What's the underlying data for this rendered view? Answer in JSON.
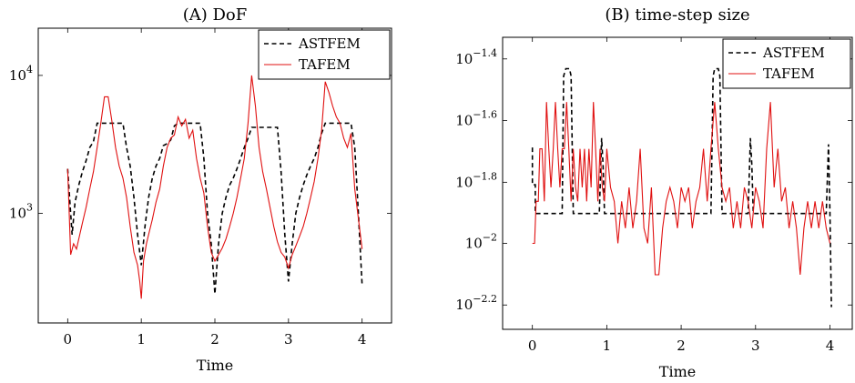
{
  "chart_data": [
    {
      "type": "line",
      "title": "(A) DoF",
      "xlabel": "Time",
      "ylabel": "",
      "yscale": "log",
      "xlim": [
        -0.4,
        4.4
      ],
      "ylim": [
        160,
        22000
      ],
      "xticks": [
        0,
        1,
        2,
        3,
        4
      ],
      "xtick_labels": [
        "0",
        "1",
        "2",
        "3",
        "4"
      ],
      "yticks": [
        1000,
        10000
      ],
      "ytick_labels": [
        "10^3",
        "10^4"
      ],
      "grid": false,
      "legend_position": "top-right",
      "series": [
        {
          "name": "ASTFEM",
          "style": "dashed",
          "color": "#000000",
          "x": [
            0.0,
            0.06,
            0.1,
            0.15,
            0.2,
            0.25,
            0.3,
            0.35,
            0.4,
            0.45,
            0.5,
            0.55,
            0.6,
            0.65,
            0.7,
            0.75,
            0.8,
            0.85,
            0.9,
            0.95,
            1.0,
            1.05,
            1.1,
            1.15,
            1.2,
            1.25,
            1.3,
            1.35,
            1.4,
            1.45,
            1.5,
            1.55,
            1.6,
            1.7,
            1.8,
            1.85,
            1.9,
            1.95,
            2.0,
            2.05,
            2.1,
            2.15,
            2.2,
            2.25,
            2.3,
            2.35,
            2.4,
            2.45,
            2.5,
            2.6,
            2.7,
            2.8,
            2.85,
            2.9,
            2.95,
            3.0,
            3.05,
            3.1,
            3.15,
            3.2,
            3.25,
            3.3,
            3.35,
            3.4,
            3.45,
            3.5,
            3.6,
            3.7,
            3.8,
            3.85,
            3.9,
            3.95,
            4.0
          ],
          "values": [
            2100,
            700,
            1200,
            1600,
            2000,
            2400,
            3000,
            3300,
            4500,
            4500,
            4500,
            4500,
            4500,
            4500,
            4500,
            4500,
            3000,
            2200,
            1300,
            700,
            420,
            800,
            1300,
            1800,
            2200,
            2500,
            3100,
            3200,
            3400,
            4300,
            4500,
            4500,
            4500,
            4500,
            4500,
            2500,
            1000,
            600,
            260,
            600,
            1000,
            1300,
            1600,
            1800,
            2100,
            2500,
            3000,
            3500,
            4200,
            4200,
            4200,
            4200,
            4200,
            2000,
            700,
            320,
            600,
            1000,
            1300,
            1600,
            1900,
            2200,
            2500,
            3000,
            3800,
            4500,
            4500,
            4500,
            4500,
            4500,
            3000,
            1000,
            300
          ]
        },
        {
          "name": "TAFEM",
          "style": "solid",
          "color": "#e01010",
          "x": [
            0.0,
            0.04,
            0.08,
            0.12,
            0.15,
            0.2,
            0.25,
            0.3,
            0.35,
            0.4,
            0.45,
            0.5,
            0.55,
            0.6,
            0.65,
            0.7,
            0.75,
            0.8,
            0.85,
            0.9,
            0.95,
            0.98,
            1.0,
            1.03,
            1.07,
            1.1,
            1.15,
            1.2,
            1.25,
            1.3,
            1.35,
            1.4,
            1.45,
            1.5,
            1.55,
            1.6,
            1.65,
            1.7,
            1.75,
            1.8,
            1.85,
            1.9,
            1.95,
            2.0,
            2.05,
            2.1,
            2.15,
            2.2,
            2.25,
            2.3,
            2.35,
            2.4,
            2.45,
            2.5,
            2.55,
            2.6,
            2.65,
            2.7,
            2.75,
            2.8,
            2.85,
            2.9,
            2.95,
            3.0,
            3.05,
            3.1,
            3.15,
            3.2,
            3.25,
            3.3,
            3.35,
            3.4,
            3.45,
            3.5,
            3.55,
            3.6,
            3.65,
            3.7,
            3.75,
            3.8,
            3.85,
            3.9,
            4.0
          ],
          "values": [
            2100,
            500,
            600,
            550,
            650,
            850,
            1100,
            1500,
            2000,
            3000,
            4500,
            7000,
            7000,
            4700,
            3000,
            2200,
            1800,
            1300,
            800,
            520,
            420,
            320,
            240,
            450,
            600,
            700,
            900,
            1200,
            1500,
            2200,
            3000,
            3500,
            3700,
            5000,
            4300,
            4800,
            3500,
            4000,
            2500,
            1800,
            1400,
            800,
            520,
            450,
            500,
            560,
            650,
            800,
            1000,
            1300,
            1800,
            2500,
            4500,
            10000,
            6000,
            3000,
            2000,
            1500,
            1100,
            800,
            620,
            520,
            480,
            400,
            500,
            580,
            680,
            800,
            1000,
            1300,
            1700,
            2500,
            4000,
            9000,
            7500,
            6000,
            5000,
            4500,
            3500,
            3000,
            3800,
            1500,
            550
          ]
        }
      ]
    },
    {
      "type": "line",
      "title": "(B) time-step size",
      "xlabel": "Time",
      "ylabel": "",
      "yscale": "log",
      "xlim": [
        -0.4,
        4.3
      ],
      "ylim": [
        0.00525,
        0.0468
      ],
      "xticks": [
        0,
        1,
        2,
        3,
        4
      ],
      "xtick_labels": [
        "0",
        "1",
        "2",
        "3",
        "4"
      ],
      "yticks": [
        0.0063,
        0.01,
        0.0158,
        0.0251,
        0.0398
      ],
      "ytick_labels": [
        "10^-2.2",
        "10^-2",
        "10^-1.8",
        "10^-1.6",
        "10^-1.4"
      ],
      "grid": false,
      "legend_position": "top-right",
      "series": [
        {
          "name": "ASTFEM",
          "style": "dashed",
          "color": "#000000",
          "x": [
            0.0,
            0.0,
            0.04,
            0.04,
            0.4,
            0.42,
            0.45,
            0.5,
            0.52,
            0.55,
            0.9,
            0.93,
            0.95,
            0.97,
            2.4,
            2.43,
            2.45,
            2.5,
            2.52,
            2.55,
            2.9,
            2.93,
            2.95,
            2.97,
            3.95,
            3.98,
            4.0,
            4.02
          ],
          "values": [
            0.0205,
            0.0155,
            0.0155,
            0.0125,
            0.0125,
            0.035,
            0.037,
            0.037,
            0.035,
            0.0125,
            0.0125,
            0.022,
            0.018,
            0.0125,
            0.0125,
            0.035,
            0.037,
            0.037,
            0.035,
            0.0125,
            0.0125,
            0.022,
            0.018,
            0.0125,
            0.0125,
            0.021,
            0.0125,
            0.0062
          ]
        },
        {
          "name": "TAFEM",
          "style": "solid",
          "color": "#e01010",
          "x": [
            0.0,
            0.03,
            0.05,
            0.08,
            0.1,
            0.13,
            0.16,
            0.19,
            0.22,
            0.25,
            0.28,
            0.31,
            0.34,
            0.37,
            0.4,
            0.43,
            0.46,
            0.49,
            0.52,
            0.55,
            0.58,
            0.61,
            0.64,
            0.67,
            0.7,
            0.73,
            0.76,
            0.79,
            0.82,
            0.85,
            0.88,
            0.91,
            0.94,
            0.97,
            1.0,
            1.05,
            1.1,
            1.15,
            1.2,
            1.25,
            1.3,
            1.35,
            1.4,
            1.45,
            1.5,
            1.55,
            1.6,
            1.65,
            1.7,
            1.75,
            1.8,
            1.85,
            1.9,
            1.95,
            2.0,
            2.05,
            2.1,
            2.15,
            2.2,
            2.25,
            2.3,
            2.35,
            2.4,
            2.45,
            2.5,
            2.55,
            2.6,
            2.65,
            2.7,
            2.75,
            2.8,
            2.85,
            2.9,
            2.95,
            3.0,
            3.05,
            3.1,
            3.15,
            3.2,
            3.25,
            3.3,
            3.35,
            3.4,
            3.45,
            3.5,
            3.55,
            3.6,
            3.65,
            3.7,
            3.75,
            3.8,
            3.85,
            3.9,
            3.95,
            4.0
          ],
          "values": [
            0.01,
            0.01,
            0.0137,
            0.0137,
            0.0203,
            0.0203,
            0.0137,
            0.0288,
            0.0203,
            0.0152,
            0.0203,
            0.0288,
            0.0203,
            0.0152,
            0.0203,
            0.0203,
            0.0288,
            0.0203,
            0.0137,
            0.0203,
            0.0152,
            0.0137,
            0.0203,
            0.0152,
            0.0203,
            0.0137,
            0.0203,
            0.0152,
            0.0288,
            0.0203,
            0.0137,
            0.0203,
            0.0152,
            0.0137,
            0.0203,
            0.0152,
            0.0137,
            0.01,
            0.0137,
            0.0112,
            0.0152,
            0.0112,
            0.0137,
            0.0203,
            0.0112,
            0.01,
            0.0152,
            0.0079,
            0.0079,
            0.0112,
            0.0137,
            0.0152,
            0.0137,
            0.0112,
            0.0152,
            0.0137,
            0.0152,
            0.0112,
            0.0137,
            0.0152,
            0.0203,
            0.0137,
            0.0203,
            0.0288,
            0.0203,
            0.0152,
            0.0137,
            0.0152,
            0.0112,
            0.0137,
            0.0112,
            0.0152,
            0.0137,
            0.0112,
            0.0152,
            0.0137,
            0.0112,
            0.0203,
            0.0288,
            0.0152,
            0.0203,
            0.0137,
            0.0152,
            0.0112,
            0.0137,
            0.0112,
            0.0079,
            0.0112,
            0.0137,
            0.0112,
            0.0137,
            0.0112,
            0.0137,
            0.0112,
            0.01
          ]
        }
      ]
    }
  ]
}
